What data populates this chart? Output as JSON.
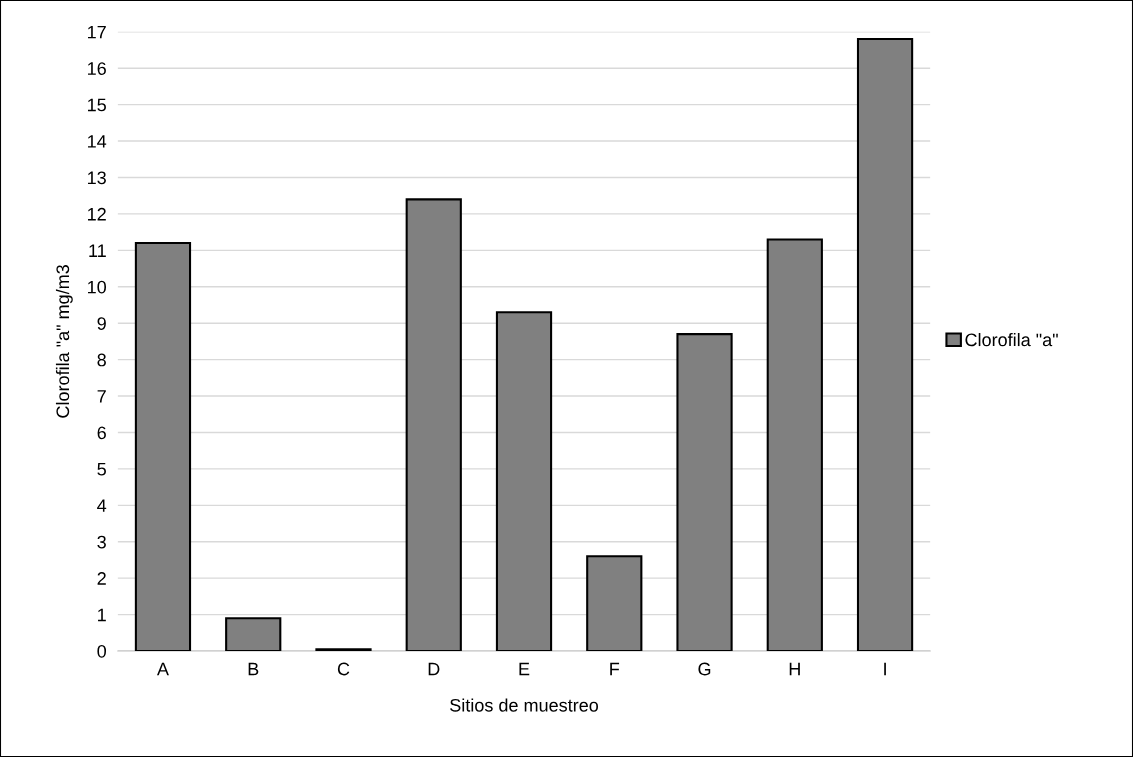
{
  "chart_data": {
    "type": "bar",
    "xlabel": "Sitios de muestreo",
    "ylabel": "Clorofila \"a\" mg/m3",
    "categories": [
      "A",
      "B",
      "C",
      "D",
      "E",
      "F",
      "G",
      "H",
      "I"
    ],
    "series": [
      {
        "name": "Clorofila \"a\"",
        "color": "#808080",
        "values": [
          11.2,
          0.9,
          0.05,
          12.4,
          9.3,
          2.6,
          8.7,
          11.3,
          16.8
        ]
      }
    ],
    "ylim": [
      0,
      17
    ],
    "yticks": [
      0,
      1,
      2,
      3,
      4,
      5,
      6,
      7,
      8,
      9,
      10,
      11,
      12,
      13,
      14,
      15,
      16,
      17
    ],
    "grid": "y",
    "legend": "right"
  }
}
